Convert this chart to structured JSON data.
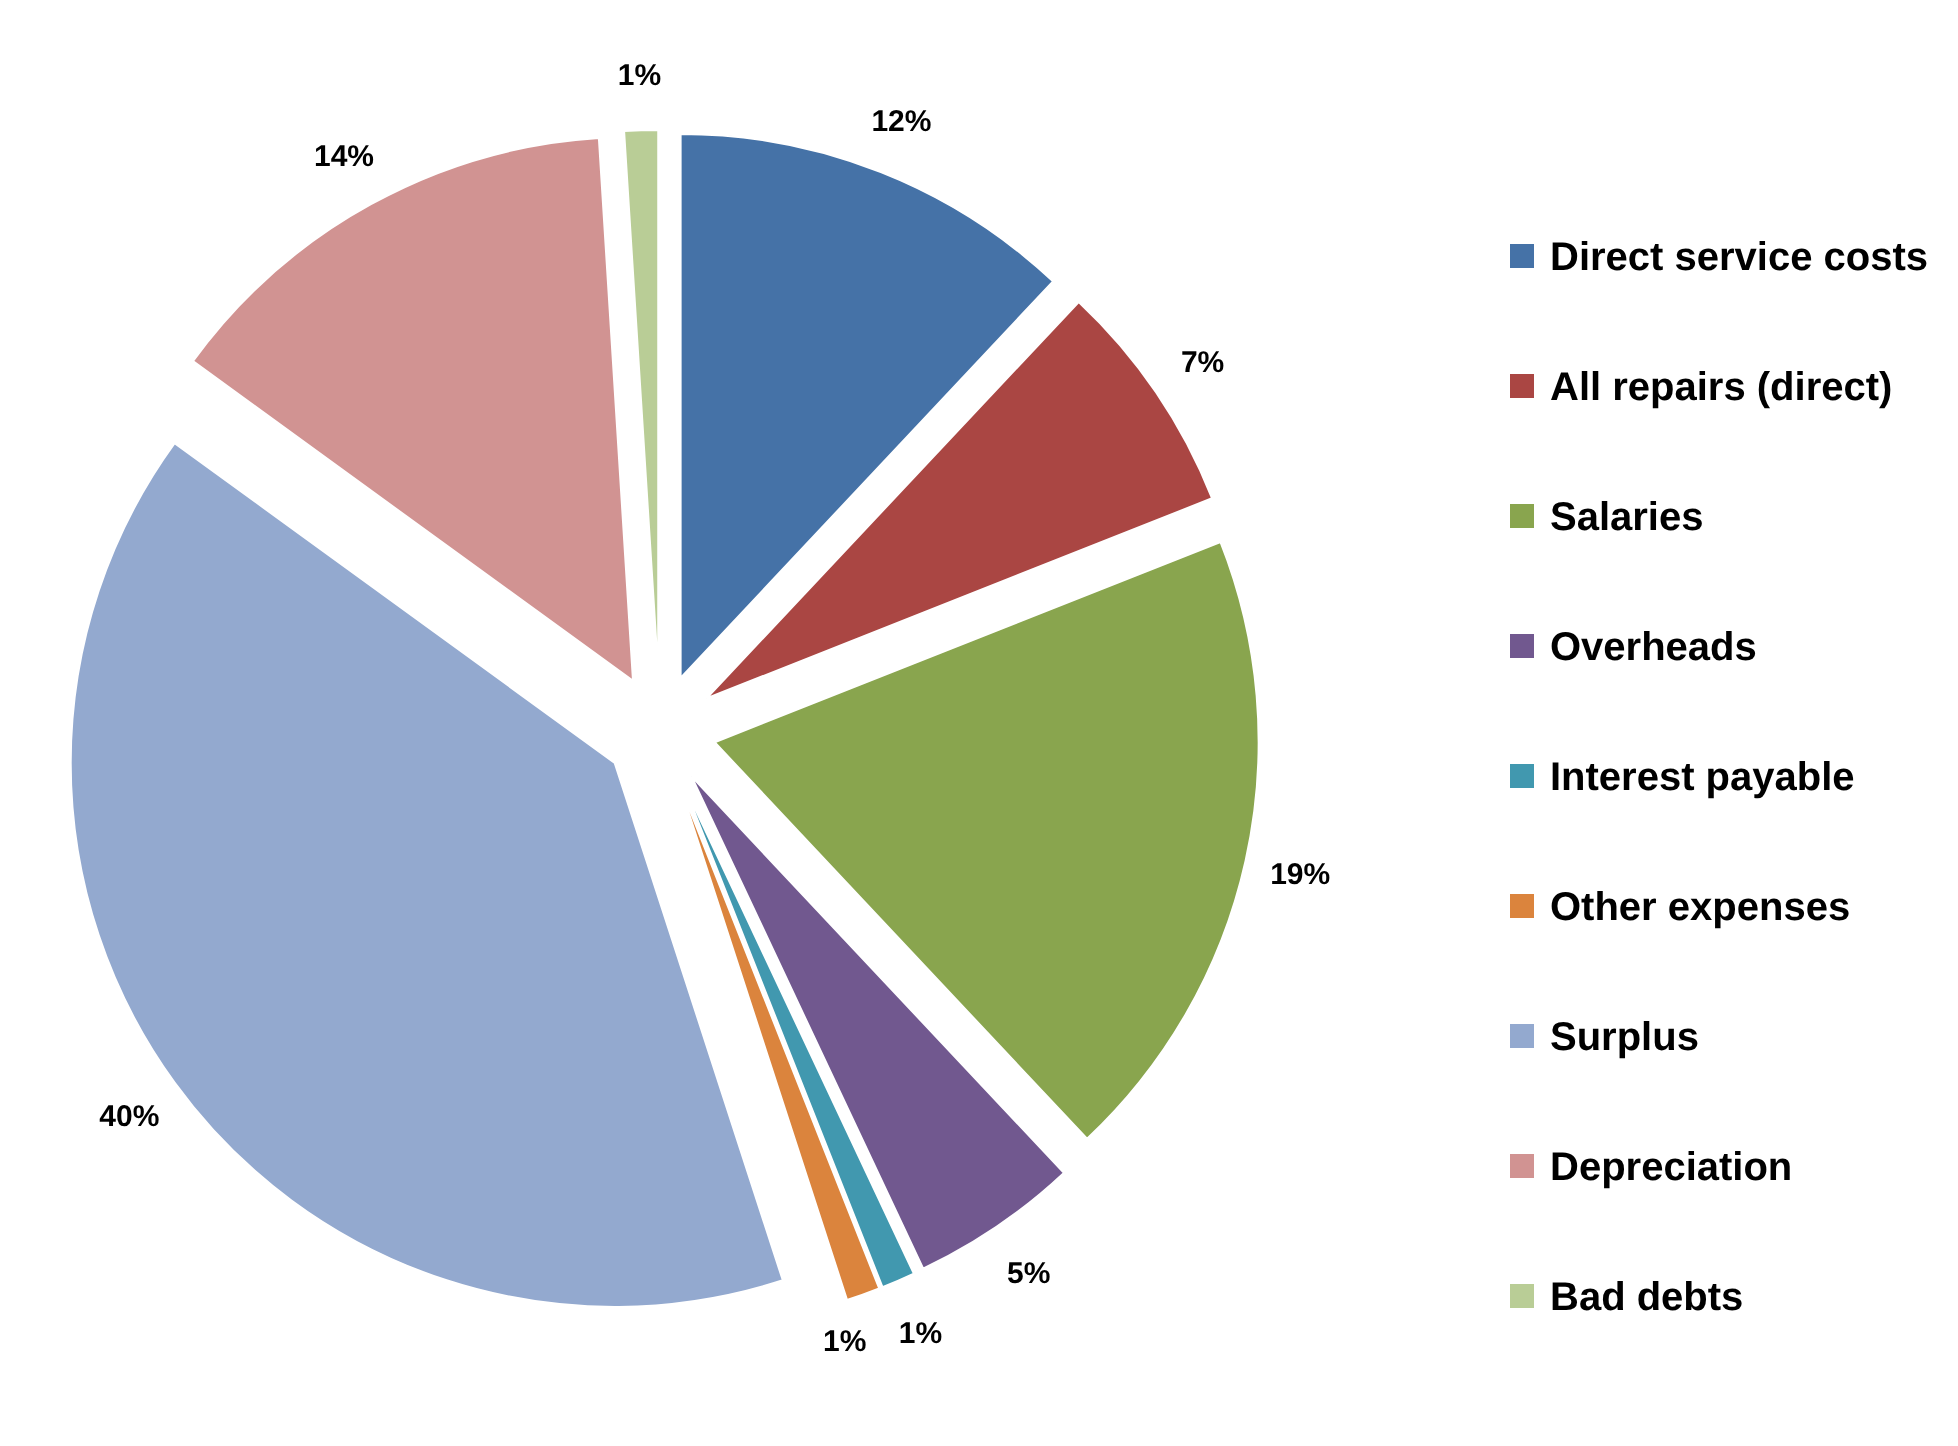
{
  "chart_data": {
    "type": "pie",
    "categories": [
      "Direct service costs",
      "All repairs (direct)",
      "Salaries",
      "Overheads",
      "Interest payable",
      "Other expenses",
      "Surplus",
      "Depreciation",
      "Bad debts"
    ],
    "values": [
      12,
      7,
      19,
      5,
      1,
      1,
      40,
      14,
      1
    ],
    "colors": [
      "#4572a7",
      "#aa4643",
      "#89a54e",
      "#71588f",
      "#4198af",
      "#db843d",
      "#93a9cf",
      "#d19392",
      "#b9cd96"
    ],
    "value_labels": [
      "12%",
      "7%",
      "19%",
      "5%",
      "1%",
      "1%",
      "40%",
      "14%",
      "1%"
    ],
    "legend": "right"
  }
}
